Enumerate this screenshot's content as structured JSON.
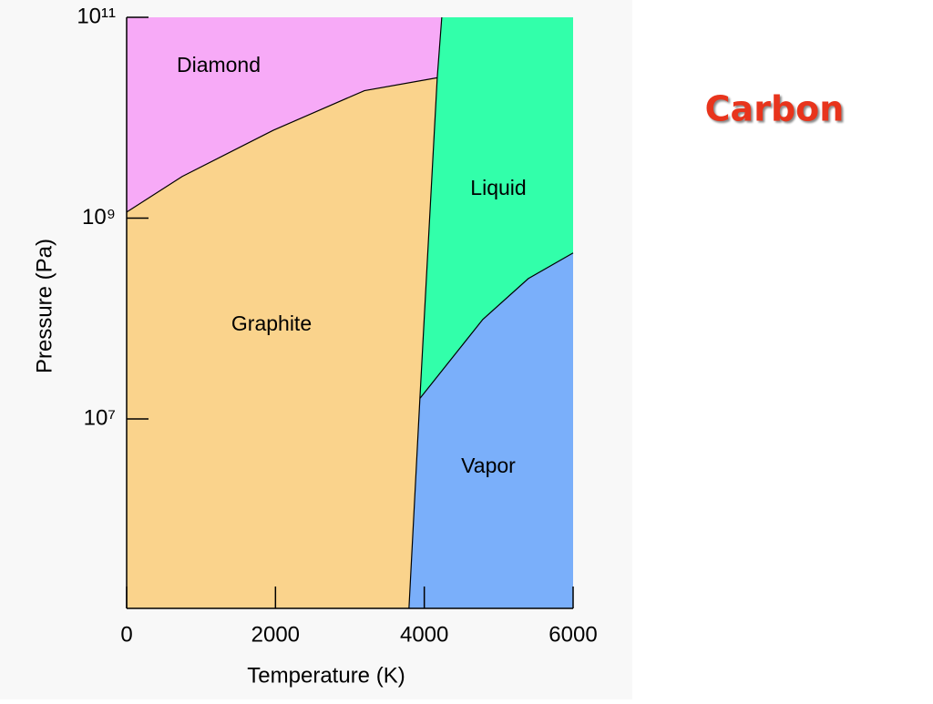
{
  "chart_data": {
    "type": "phase",
    "title": "Carbon",
    "xlabel": "Temperature (K)",
    "ylabel": "Pressure (Pa)",
    "xlim": [
      0,
      6000
    ],
    "ylim": [
      130000,
      100000000000
    ],
    "log_y": true,
    "xticks": [
      0,
      2000,
      4000,
      6000
    ],
    "yticks": [
      {
        "value": 10000000,
        "label": "10⁷"
      },
      {
        "value": 1000000000,
        "label": "10⁹"
      },
      {
        "value": 100000000000,
        "label": "10¹¹"
      }
    ],
    "regions": [
      {
        "name": "Diamond",
        "color": "#f7aaf7"
      },
      {
        "name": "Graphite",
        "color": "#fad38c"
      },
      {
        "name": "Liquid",
        "color": "#32ffaa"
      },
      {
        "name": "Vapor",
        "color": "#7aaffa"
      }
    ],
    "boundaries": [
      {
        "x": [
          0,
          747,
          1970,
          3195,
          4174
        ],
        "values": [
          1150000000,
          2600000000,
          7500000000,
          18600000000,
          25000000000
        ]
      },
      {
        "x": [
          3794,
          3941,
          4174,
          4235
        ],
        "values": [
          130000,
          16000000,
          25000000000,
          100000000000
        ]
      },
      {
        "x": [
          3941,
          4786,
          5398,
          6000
        ],
        "values": [
          16000000,
          98000000,
          250000000,
          450000000
        ]
      }
    ]
  }
}
